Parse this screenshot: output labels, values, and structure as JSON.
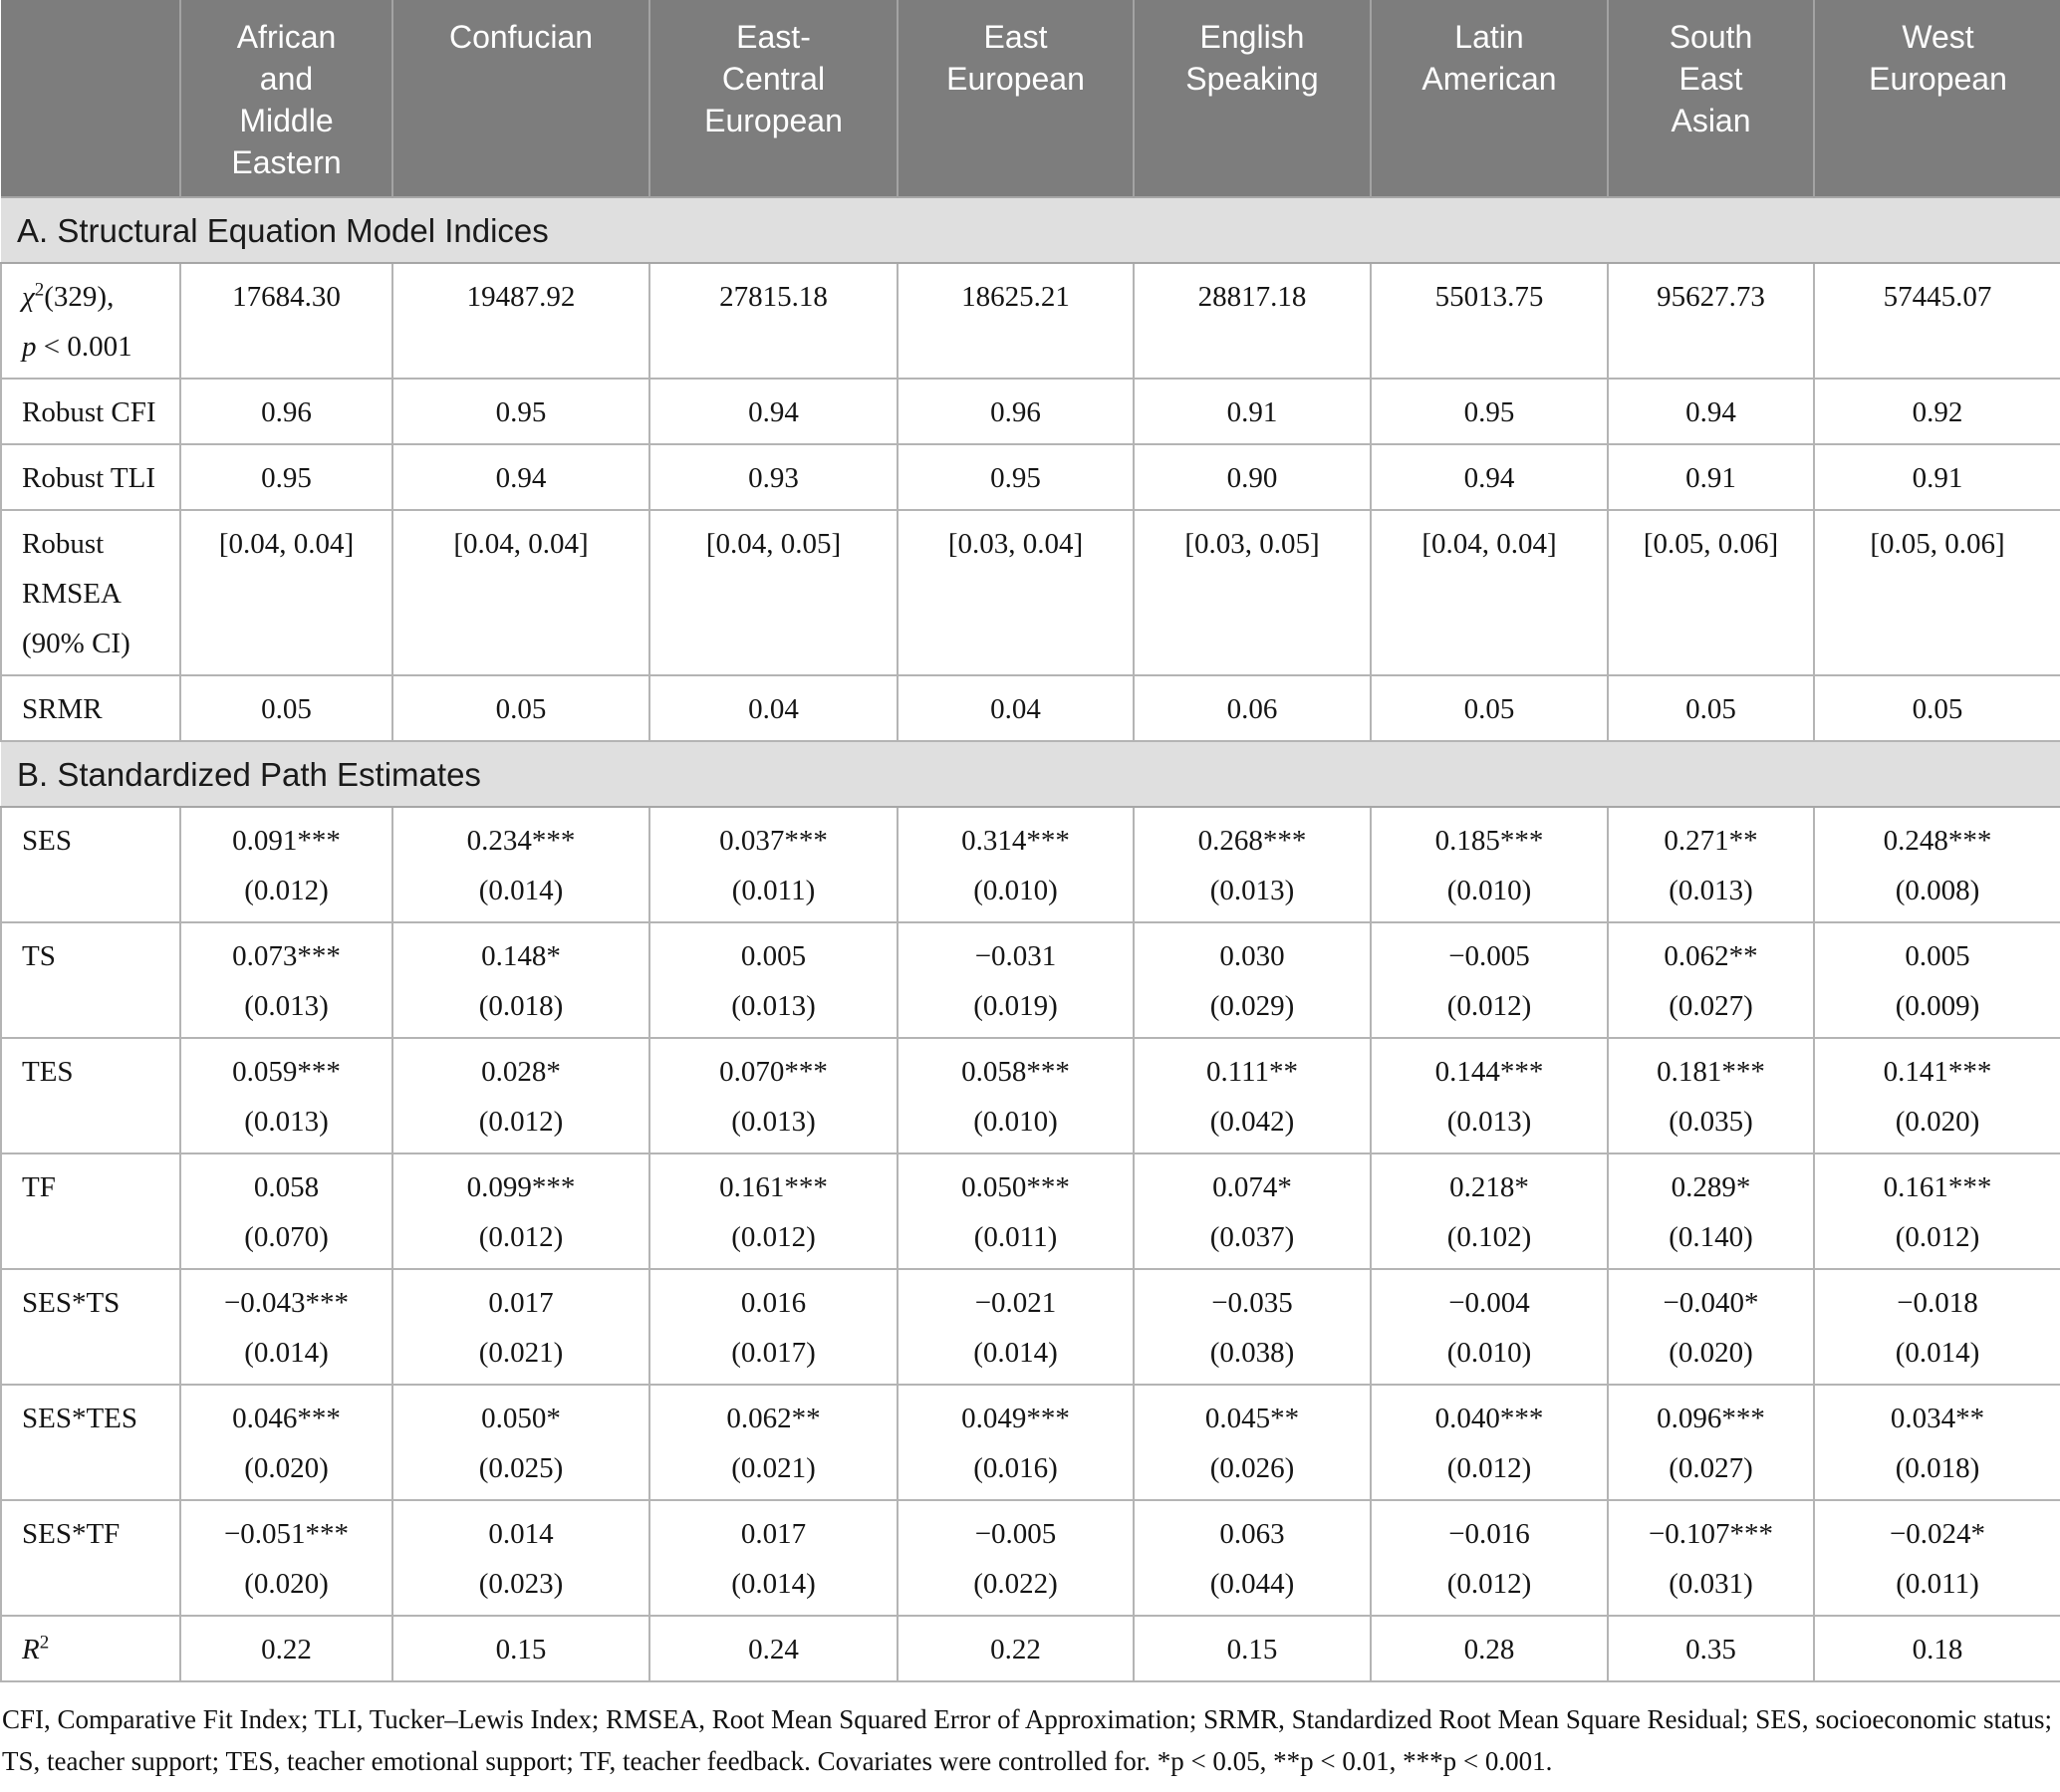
{
  "table": {
    "columns": [
      {
        "id": "african-and-middle-eastern",
        "lines": [
          "African",
          "and",
          "Middle",
          "Eastern"
        ]
      },
      {
        "id": "confucian",
        "lines": [
          "Confucian"
        ]
      },
      {
        "id": "east-central-european",
        "lines": [
          "East-",
          "Central",
          "European"
        ]
      },
      {
        "id": "east-european",
        "lines": [
          "East",
          "European"
        ]
      },
      {
        "id": "english-speaking",
        "lines": [
          "English",
          "Speaking"
        ]
      },
      {
        "id": "latin-american",
        "lines": [
          "Latin",
          "American"
        ]
      },
      {
        "id": "south-east-asian",
        "lines": [
          "South",
          "East",
          "Asian"
        ]
      },
      {
        "id": "west-european",
        "lines": [
          "West",
          "European"
        ]
      }
    ],
    "sections": [
      {
        "title": "A. Structural Equation Model Indices",
        "rows": [
          {
            "id": "chi-square",
            "label": [
              [
                {
                  "t": "χ",
                  "i": true
                },
                {
                  "t": "2",
                  "sup": true
                },
                {
                  "t": "(329),"
                }
              ],
              [
                {
                  "t": "p",
                  "i": true
                },
                {
                  "t": " < 0.001"
                }
              ]
            ],
            "cells": [
              [
                "17684.30"
              ],
              [
                "19487.92"
              ],
              [
                "27815.18"
              ],
              [
                "18625.21"
              ],
              [
                "28817.18"
              ],
              [
                "55013.75"
              ],
              [
                "95627.73"
              ],
              [
                "57445.07"
              ]
            ]
          },
          {
            "id": "robust-cfi",
            "label": [
              [
                {
                  "t": "Robust CFI"
                }
              ]
            ],
            "cells": [
              [
                "0.96"
              ],
              [
                "0.95"
              ],
              [
                "0.94"
              ],
              [
                "0.96"
              ],
              [
                "0.91"
              ],
              [
                "0.95"
              ],
              [
                "0.94"
              ],
              [
                "0.92"
              ]
            ]
          },
          {
            "id": "robust-tli",
            "label": [
              [
                {
                  "t": "Robust TLI"
                }
              ]
            ],
            "cells": [
              [
                "0.95"
              ],
              [
                "0.94"
              ],
              [
                "0.93"
              ],
              [
                "0.95"
              ],
              [
                "0.90"
              ],
              [
                "0.94"
              ],
              [
                "0.91"
              ],
              [
                "0.91"
              ]
            ]
          },
          {
            "id": "robust-rmsea",
            "label": [
              [
                {
                  "t": "Robust"
                }
              ],
              [
                {
                  "t": "RMSEA"
                }
              ],
              [
                {
                  "t": "(90% CI)"
                }
              ]
            ],
            "cells": [
              [
                "[0.04, 0.04]"
              ],
              [
                "[0.04, 0.04]"
              ],
              [
                "[0.04, 0.05]"
              ],
              [
                "[0.03, 0.04]"
              ],
              [
                "[0.03, 0.05]"
              ],
              [
                "[0.04, 0.04]"
              ],
              [
                "[0.05, 0.06]"
              ],
              [
                "[0.05, 0.06]"
              ]
            ]
          },
          {
            "id": "srmr",
            "label": [
              [
                {
                  "t": "SRMR"
                }
              ]
            ],
            "cells": [
              [
                "0.05"
              ],
              [
                "0.05"
              ],
              [
                "0.04"
              ],
              [
                "0.04"
              ],
              [
                "0.06"
              ],
              [
                "0.05"
              ],
              [
                "0.05"
              ],
              [
                "0.05"
              ]
            ]
          }
        ]
      },
      {
        "title": "B. Standardized Path Estimates",
        "rows": [
          {
            "id": "ses",
            "label": [
              [
                {
                  "t": "SES"
                }
              ]
            ],
            "cells": [
              [
                "0.091***",
                "(0.012)"
              ],
              [
                "0.234***",
                "(0.014)"
              ],
              [
                "0.037***",
                "(0.011)"
              ],
              [
                "0.314***",
                "(0.010)"
              ],
              [
                "0.268***",
                "(0.013)"
              ],
              [
                "0.185***",
                "(0.010)"
              ],
              [
                "0.271**",
                "(0.013)"
              ],
              [
                "0.248***",
                "(0.008)"
              ]
            ]
          },
          {
            "id": "ts",
            "label": [
              [
                {
                  "t": "TS"
                }
              ]
            ],
            "cells": [
              [
                "0.073***",
                "(0.013)"
              ],
              [
                "0.148*",
                "(0.018)"
              ],
              [
                "0.005",
                "(0.013)"
              ],
              [
                "−0.031",
                "(0.019)"
              ],
              [
                "0.030",
                "(0.029)"
              ],
              [
                "−0.005",
                "(0.012)"
              ],
              [
                "0.062**",
                "(0.027)"
              ],
              [
                "0.005",
                "(0.009)"
              ]
            ]
          },
          {
            "id": "tes",
            "label": [
              [
                {
                  "t": "TES"
                }
              ]
            ],
            "cells": [
              [
                "0.059***",
                "(0.013)"
              ],
              [
                "0.028*",
                "(0.012)"
              ],
              [
                "0.070***",
                "(0.013)"
              ],
              [
                "0.058***",
                "(0.010)"
              ],
              [
                "0.111**",
                "(0.042)"
              ],
              [
                "0.144***",
                "(0.013)"
              ],
              [
                "0.181***",
                "(0.035)"
              ],
              [
                "0.141***",
                "(0.020)"
              ]
            ]
          },
          {
            "id": "tf",
            "label": [
              [
                {
                  "t": "TF"
                }
              ]
            ],
            "cells": [
              [
                "0.058",
                "(0.070)"
              ],
              [
                "0.099***",
                "(0.012)"
              ],
              [
                "0.161***",
                "(0.012)"
              ],
              [
                "0.050***",
                "(0.011)"
              ],
              [
                "0.074*",
                "(0.037)"
              ],
              [
                "0.218*",
                "(0.102)"
              ],
              [
                "0.289*",
                "(0.140)"
              ],
              [
                "0.161***",
                "(0.012)"
              ]
            ]
          },
          {
            "id": "ses-x-ts",
            "label": [
              [
                {
                  "t": "SES*TS"
                }
              ]
            ],
            "cells": [
              [
                "−0.043***",
                "(0.014)"
              ],
              [
                "0.017",
                "(0.021)"
              ],
              [
                "0.016",
                "(0.017)"
              ],
              [
                "−0.021",
                "(0.014)"
              ],
              [
                "−0.035",
                "(0.038)"
              ],
              [
                "−0.004",
                "(0.010)"
              ],
              [
                "−0.040*",
                "(0.020)"
              ],
              [
                "−0.018",
                "(0.014)"
              ]
            ]
          },
          {
            "id": "ses-x-tes",
            "label": [
              [
                {
                  "t": "SES*TES"
                }
              ]
            ],
            "cells": [
              [
                "0.046***",
                "(0.020)"
              ],
              [
                "0.050*",
                "(0.025)"
              ],
              [
                "0.062**",
                "(0.021)"
              ],
              [
                "0.049***",
                "(0.016)"
              ],
              [
                "0.045**",
                "(0.026)"
              ],
              [
                "0.040***",
                "(0.012)"
              ],
              [
                "0.096***",
                "(0.027)"
              ],
              [
                "0.034**",
                "(0.018)"
              ]
            ]
          },
          {
            "id": "ses-x-tf",
            "label": [
              [
                {
                  "t": "SES*TF"
                }
              ]
            ],
            "cells": [
              [
                "−0.051***",
                "(0.020)"
              ],
              [
                "0.014",
                "(0.023)"
              ],
              [
                "0.017",
                "(0.014)"
              ],
              [
                "−0.005",
                "(0.022)"
              ],
              [
                "0.063",
                "(0.044)"
              ],
              [
                "−0.016",
                "(0.012)"
              ],
              [
                "−0.107***",
                "(0.031)"
              ],
              [
                "−0.024*",
                "(0.011)"
              ]
            ]
          },
          {
            "id": "r-squared",
            "label": [
              [
                {
                  "t": "R",
                  "i": true
                },
                {
                  "t": "2",
                  "sup": true
                }
              ]
            ],
            "cells": [
              [
                "0.22"
              ],
              [
                "0.15"
              ],
              [
                "0.24"
              ],
              [
                "0.22"
              ],
              [
                "0.15"
              ],
              [
                "0.28"
              ],
              [
                "0.35"
              ],
              [
                "0.18"
              ]
            ]
          }
        ]
      }
    ],
    "footnote": "CFI, Comparative Fit Index; TLI, Tucker–Lewis Index; RMSEA, Root Mean Squared Error of Approximation; SRMR, Standardized Root Mean Square Residual; SES, socioeconomic status; TS, teacher support; TES, teacher emotional support; TF, teacher feedback. Covariates were controlled for. *p < 0.05, **p < 0.01, ***p < 0.001.",
    "colors": {
      "header_background": "#7d7d7d",
      "header_text": "#ffffff",
      "section_band_background": "#dfdfdf",
      "cell_border": "#b4b4b4",
      "body_text": "#151515"
    }
  }
}
